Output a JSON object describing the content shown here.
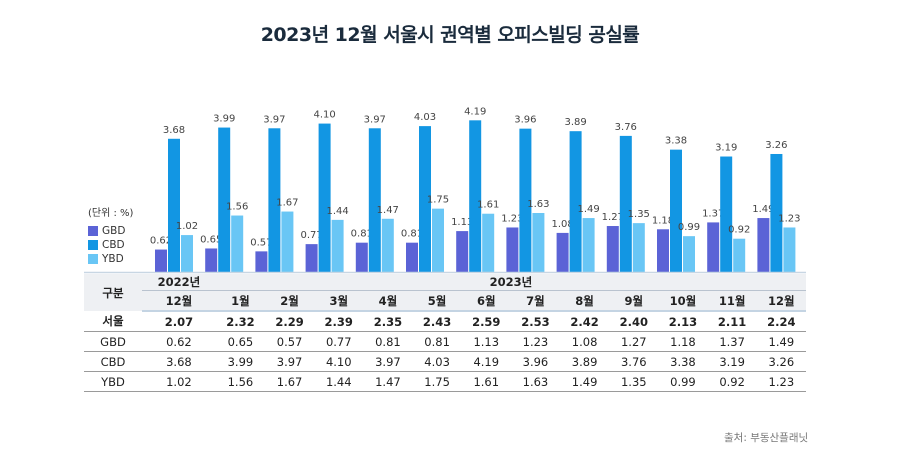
{
  "title": "2023년 12월 서울시 권역별 오피스빌딩 공실률",
  "unit_label": "(단위 : %)",
  "source": "출처: 부동산플래닛",
  "colors": {
    "GBD": "#5b63d6",
    "CBD": "#1296e3",
    "YBD": "#69c6f5"
  },
  "table": {
    "corner_label": "구분",
    "year_2022": "2022년",
    "year_2023": "2023년",
    "months": [
      "12월",
      "1월",
      "2월",
      "3월",
      "4월",
      "5월",
      "6월",
      "7월",
      "8월",
      "9월",
      "10월",
      "11월",
      "12월"
    ],
    "rows": [
      {
        "label": "서울",
        "values": [
          "2.07",
          "2.32",
          "2.29",
          "2.39",
          "2.35",
          "2.43",
          "2.59",
          "2.53",
          "2.42",
          "2.40",
          "2.13",
          "2.11",
          "2.24"
        ]
      },
      {
        "label": "GBD",
        "values": [
          "0.62",
          "0.65",
          "0.57",
          "0.77",
          "0.81",
          "0.81",
          "1.13",
          "1.23",
          "1.08",
          "1.27",
          "1.18",
          "1.37",
          "1.49"
        ]
      },
      {
        "label": "CBD",
        "values": [
          "3.68",
          "3.99",
          "3.97",
          "4.10",
          "3.97",
          "4.03",
          "4.19",
          "3.96",
          "3.89",
          "3.76",
          "3.38",
          "3.19",
          "3.26"
        ]
      },
      {
        "label": "YBD",
        "values": [
          "1.02",
          "1.56",
          "1.67",
          "1.44",
          "1.47",
          "1.75",
          "1.61",
          "1.63",
          "1.49",
          "1.35",
          "0.99",
          "0.92",
          "1.23"
        ]
      }
    ]
  },
  "chart_data": {
    "type": "bar",
    "title": "2023년 12월 서울시 권역별 오피스빌딩 공실률",
    "xlabel": "",
    "ylabel": "(단위 : %)",
    "categories": [
      "2022년 12월",
      "2023년 1월",
      "2월",
      "3월",
      "4월",
      "5월",
      "6월",
      "7월",
      "8월",
      "9월",
      "10월",
      "11월",
      "12월"
    ],
    "series": [
      {
        "name": "GBD",
        "values": [
          0.62,
          0.65,
          0.57,
          0.77,
          0.81,
          0.81,
          1.13,
          1.23,
          1.08,
          1.27,
          1.18,
          1.37,
          1.49
        ]
      },
      {
        "name": "CBD",
        "values": [
          3.68,
          3.99,
          3.97,
          4.1,
          3.97,
          4.03,
          4.19,
          3.96,
          3.89,
          3.76,
          3.38,
          3.19,
          3.26
        ]
      },
      {
        "name": "YBD",
        "values": [
          1.02,
          1.56,
          1.67,
          1.44,
          1.47,
          1.75,
          1.61,
          1.63,
          1.49,
          1.35,
          0.99,
          0.92,
          1.23
        ]
      }
    ],
    "ylim": [
      0,
      4.5
    ],
    "grid": false,
    "legend": "left",
    "data_labels": true
  }
}
